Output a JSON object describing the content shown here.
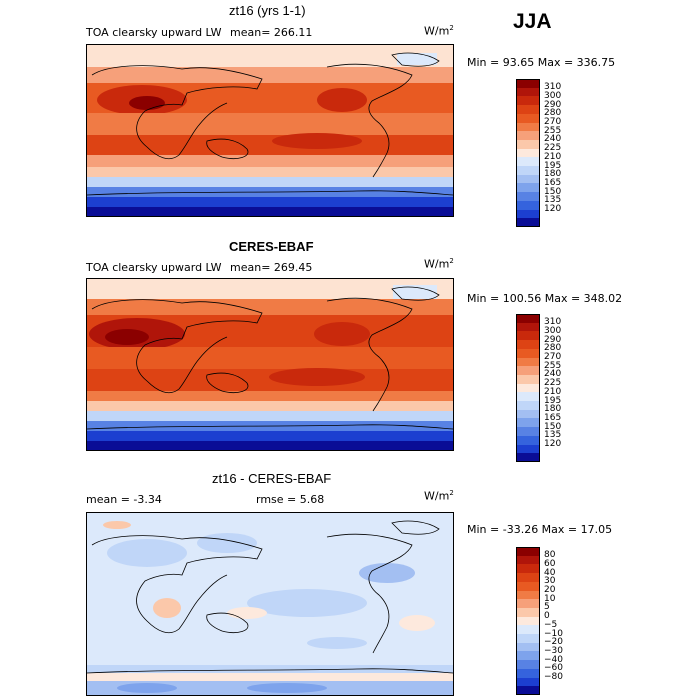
{
  "season": "JJA",
  "panels": [
    {
      "title": "zt16 (yrs 1-1)",
      "left_label": "TOA clearsky upward LW",
      "center_label": "mean= 266.11",
      "units": "W/m",
      "units_sup": "2",
      "minmax": "Min =  93.65 Max = 336.75",
      "colorbar": {
        "colors": [
          "#8b0000",
          "#b0150a",
          "#c9290c",
          "#dd4314",
          "#e85a22",
          "#f07b45",
          "#f6a07a",
          "#fbc8aa",
          "#fde9dd",
          "#dce9fb",
          "#c0d6f8",
          "#a3bff2",
          "#7ea3ec",
          "#5882e4",
          "#3563dd",
          "#1c3fd0",
          "#0a0d96"
        ],
        "labels": [
          "310",
          "300",
          "290",
          "280",
          "270",
          "255",
          "240",
          "225",
          "210",
          "195",
          "180",
          "165",
          "150",
          "135",
          "120"
        ]
      },
      "map_colors": {
        "band1": "#fde3d2",
        "band2": "#f6a07a",
        "band3": "#e85a22",
        "band4": "#dd4314",
        "band5": "#c9290c",
        "band6": "#f07b45",
        "band7": "#fbc8aa",
        "band8": "#c0d6f8",
        "band9": "#5882e4",
        "band10": "#1c3fd0",
        "band11": "#0a0d96"
      }
    },
    {
      "title": "CERES-EBAF",
      "left_label": "TOA clearsky upward LW",
      "center_label": "mean= 269.45",
      "units": "W/m",
      "units_sup": "2",
      "minmax": "Min = 100.56 Max = 348.02",
      "colorbar": {
        "colors": [
          "#8b0000",
          "#b0150a",
          "#c9290c",
          "#dd4314",
          "#e85a22",
          "#f07b45",
          "#f6a07a",
          "#fbc8aa",
          "#fde9dd",
          "#dce9fb",
          "#c0d6f8",
          "#a3bff2",
          "#7ea3ec",
          "#5882e4",
          "#3563dd",
          "#1c3fd0",
          "#0a0d96"
        ],
        "labels": [
          "310",
          "300",
          "290",
          "280",
          "270",
          "255",
          "240",
          "225",
          "210",
          "195",
          "180",
          "165",
          "150",
          "135",
          "120"
        ]
      },
      "map_colors": {
        "band1": "#fde3d2",
        "band2": "#f6a07a",
        "band3": "#e85a22",
        "band4": "#dd4314",
        "band5": "#c9290c",
        "band6": "#f07b45",
        "band7": "#fbc8aa",
        "band8": "#c0d6f8",
        "band9": "#5882e4",
        "band10": "#1c3fd0",
        "band11": "#0a0d96"
      }
    },
    {
      "title": "zt16 - CERES-EBAF",
      "left_label": "mean =   -3.34",
      "center_label": "rmse =    5.68",
      "units": "W/m",
      "units_sup": "2",
      "minmax": "Min = -33.26 Max =   17.05",
      "colorbar": {
        "colors": [
          "#8b0000",
          "#b0150a",
          "#c9290c",
          "#dd4314",
          "#e85a22",
          "#f07b45",
          "#f6a07a",
          "#fbc8aa",
          "#fde9dd",
          "#dce9fb",
          "#c0d6f8",
          "#a3bff2",
          "#7ea3ec",
          "#5882e4",
          "#3563dd",
          "#1c3fd0",
          "#0a0d96"
        ],
        "labels": [
          "80",
          "60",
          "40",
          "30",
          "20",
          "10",
          "5",
          "0",
          "−5",
          "−10",
          "−20",
          "−30",
          "−40",
          "−60",
          "−80"
        ]
      },
      "map_colors": {
        "band1": "#dce9fb",
        "band2": "#c0d6f8",
        "band3": "#a3bff2",
        "band4": "#fbc8aa",
        "band5": "#7ea3ec",
        "band6": "#fde9dd",
        "band7": "#f6a07a"
      }
    }
  ]
}
